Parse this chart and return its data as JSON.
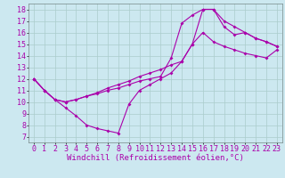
{
  "xlabel": "Windchill (Refroidissement éolien,°C)",
  "background_color": "#cce8f0",
  "grid_color": "#aacccc",
  "line_color": "#aa00aa",
  "xlim": [
    -0.5,
    23.5
  ],
  "ylim": [
    6.5,
    18.5
  ],
  "yticks": [
    7,
    8,
    9,
    10,
    11,
    12,
    13,
    14,
    15,
    16,
    17,
    18
  ],
  "xticks": [
    0,
    1,
    2,
    3,
    4,
    5,
    6,
    7,
    8,
    9,
    10,
    11,
    12,
    13,
    14,
    15,
    16,
    17,
    18,
    19,
    20,
    21,
    22,
    23
  ],
  "series1_x": [
    0,
    1,
    2,
    3,
    4,
    5,
    6,
    7,
    8,
    9,
    10,
    11,
    12,
    13,
    14,
    15,
    16,
    17,
    18,
    19,
    20,
    21,
    22,
    23
  ],
  "series1_y": [
    12.0,
    11.0,
    10.2,
    9.5,
    8.8,
    8.0,
    7.7,
    7.5,
    7.3,
    9.8,
    11.0,
    11.5,
    12.0,
    12.5,
    13.5,
    15.0,
    16.0,
    15.2,
    14.8,
    14.5,
    14.2,
    14.0,
    13.8,
    14.5
  ],
  "series2_x": [
    0,
    1,
    2,
    3,
    4,
    5,
    6,
    7,
    8,
    9,
    10,
    11,
    12,
    13,
    14,
    15,
    16,
    17,
    18,
    19,
    20,
    21,
    22,
    23
  ],
  "series2_y": [
    12.0,
    11.0,
    10.2,
    10.0,
    10.2,
    10.5,
    10.7,
    11.0,
    11.2,
    11.5,
    11.8,
    12.0,
    12.2,
    13.8,
    16.8,
    17.5,
    18.0,
    18.0,
    17.0,
    16.5,
    16.0,
    15.5,
    15.2,
    14.8
  ],
  "series3_x": [
    0,
    1,
    2,
    3,
    4,
    5,
    6,
    7,
    8,
    9,
    10,
    11,
    12,
    13,
    14,
    15,
    16,
    17,
    18,
    19,
    20,
    21,
    22,
    23
  ],
  "series3_y": [
    12.0,
    11.0,
    10.2,
    10.0,
    10.2,
    10.5,
    10.8,
    11.2,
    11.5,
    11.8,
    12.2,
    12.5,
    12.8,
    13.2,
    13.5,
    15.0,
    18.0,
    18.0,
    16.5,
    15.8,
    16.0,
    15.5,
    15.2,
    14.8
  ],
  "xlabel_fontsize": 6.5,
  "tick_fontsize": 6,
  "linewidth": 0.8,
  "markersize": 2.0
}
